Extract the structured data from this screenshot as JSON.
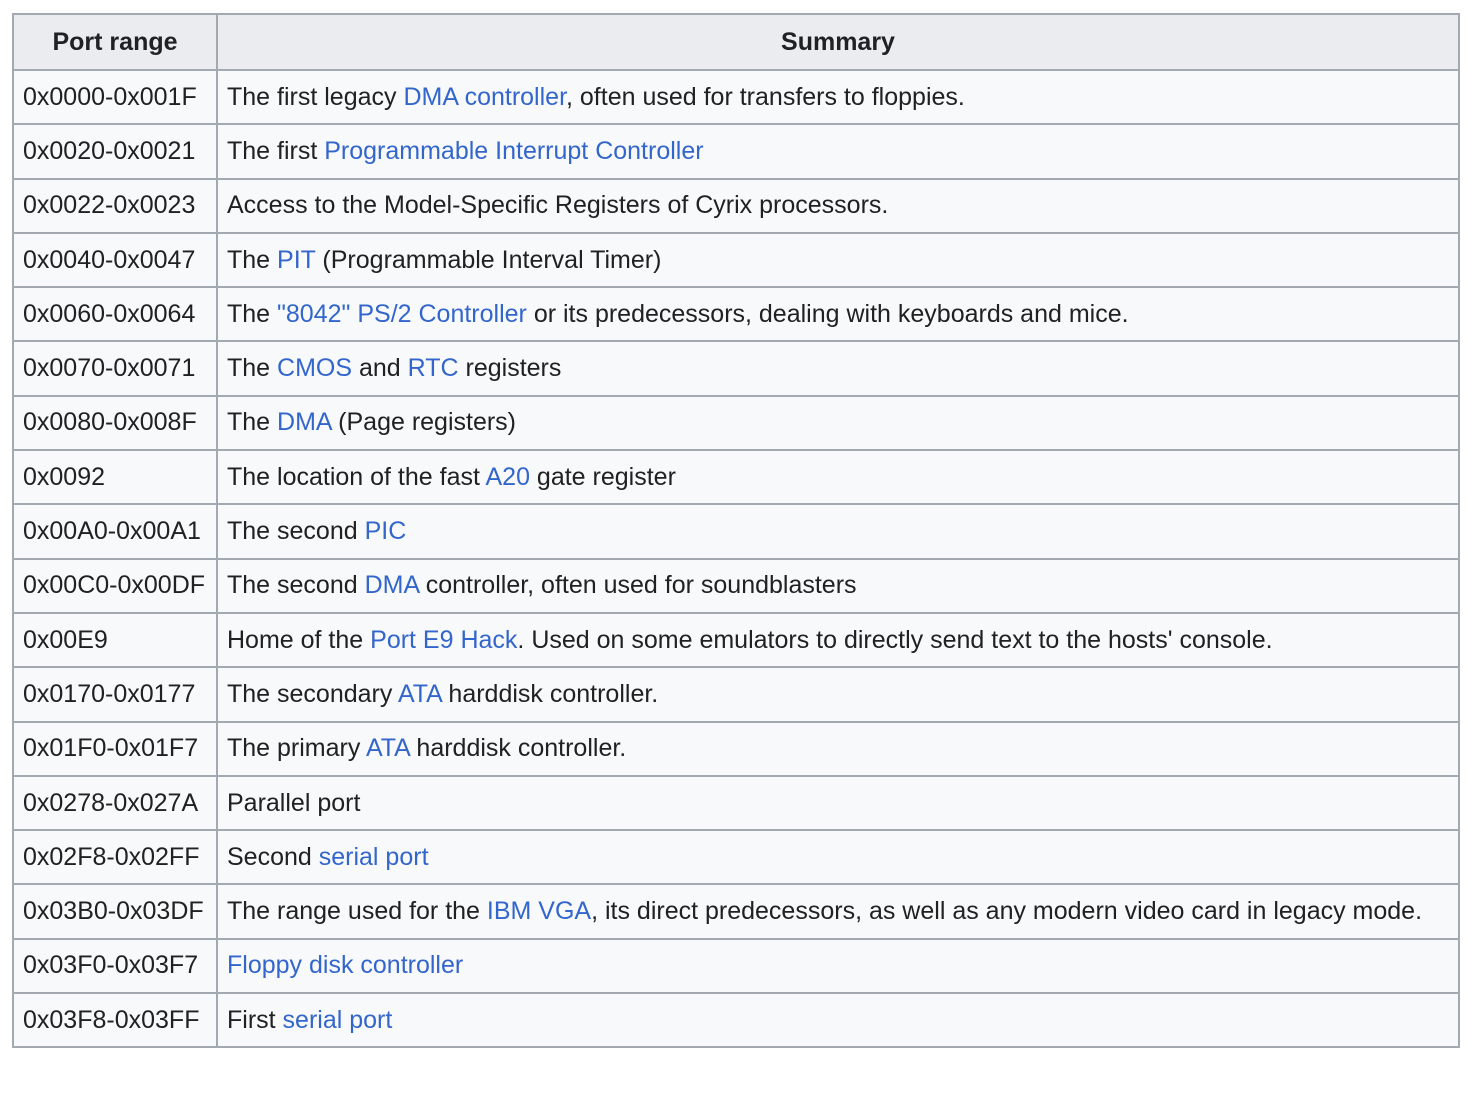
{
  "table": {
    "headers": {
      "port_range": "Port range",
      "summary": "Summary"
    },
    "rows": [
      {
        "range": "0x0000-0x001F",
        "summary": [
          {
            "t": "The first legacy "
          },
          {
            "t": "DMA controller",
            "link": true
          },
          {
            "t": ", often used for transfers to floppies."
          }
        ]
      },
      {
        "range": "0x0020-0x0021",
        "summary": [
          {
            "t": "The first "
          },
          {
            "t": "Programmable Interrupt Controller",
            "link": true
          }
        ]
      },
      {
        "range": "0x0022-0x0023",
        "summary": [
          {
            "t": "Access to the Model-Specific Registers of Cyrix processors."
          }
        ]
      },
      {
        "range": "0x0040-0x0047",
        "summary": [
          {
            "t": "The "
          },
          {
            "t": "PIT",
            "link": true
          },
          {
            "t": " (Programmable Interval Timer)"
          }
        ]
      },
      {
        "range": "0x0060-0x0064",
        "summary": [
          {
            "t": "The "
          },
          {
            "t": "\"8042\" PS/2 Controller",
            "link": true
          },
          {
            "t": " or its predecessors, dealing with keyboards and mice."
          }
        ]
      },
      {
        "range": "0x0070-0x0071",
        "summary": [
          {
            "t": "The "
          },
          {
            "t": "CMOS",
            "link": true
          },
          {
            "t": " and "
          },
          {
            "t": "RTC",
            "link": true
          },
          {
            "t": " registers"
          }
        ]
      },
      {
        "range": "0x0080-0x008F",
        "summary": [
          {
            "t": "The "
          },
          {
            "t": "DMA",
            "link": true
          },
          {
            "t": " (Page registers)"
          }
        ]
      },
      {
        "range": "0x0092",
        "summary": [
          {
            "t": "The location of the fast "
          },
          {
            "t": "A20",
            "link": true
          },
          {
            "t": " gate register"
          }
        ]
      },
      {
        "range": "0x00A0-0x00A1",
        "summary": [
          {
            "t": "The second "
          },
          {
            "t": "PIC",
            "link": true
          }
        ]
      },
      {
        "range": "0x00C0-0x00DF",
        "summary": [
          {
            "t": "The second "
          },
          {
            "t": "DMA",
            "link": true
          },
          {
            "t": " controller, often used for soundblasters"
          }
        ]
      },
      {
        "range": "0x00E9",
        "summary": [
          {
            "t": "Home of the "
          },
          {
            "t": "Port E9 Hack",
            "link": true
          },
          {
            "t": ". Used on some emulators to directly send text to the hosts' console."
          }
        ]
      },
      {
        "range": "0x0170-0x0177",
        "summary": [
          {
            "t": "The secondary "
          },
          {
            "t": "ATA",
            "link": true
          },
          {
            "t": " harddisk controller."
          }
        ]
      },
      {
        "range": "0x01F0-0x01F7",
        "summary": [
          {
            "t": "The primary "
          },
          {
            "t": "ATA",
            "link": true
          },
          {
            "t": " harddisk controller."
          }
        ]
      },
      {
        "range": "0x0278-0x027A",
        "summary": [
          {
            "t": "Parallel port"
          }
        ]
      },
      {
        "range": "0x02F8-0x02FF",
        "summary": [
          {
            "t": "Second "
          },
          {
            "t": "serial port",
            "link": true
          }
        ]
      },
      {
        "range": "0x03B0-0x03DF",
        "summary": [
          {
            "t": "The range used for the "
          },
          {
            "t": "IBM VGA",
            "link": true
          },
          {
            "t": ", its direct predecessors, as well as any modern video card in legacy mode."
          }
        ]
      },
      {
        "range": "0x03F0-0x03F7",
        "summary": [
          {
            "t": "Floppy disk controller",
            "link": true
          }
        ]
      },
      {
        "range": "0x03F8-0x03FF",
        "summary": [
          {
            "t": "First "
          },
          {
            "t": "serial port",
            "link": true
          }
        ]
      }
    ]
  }
}
